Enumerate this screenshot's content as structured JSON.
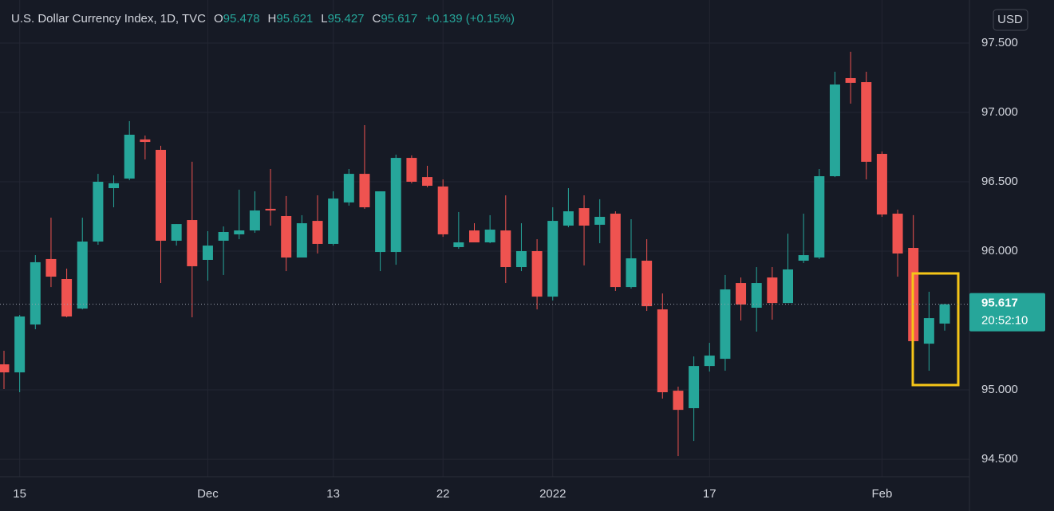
{
  "chart_data": {
    "type": "candlestick",
    "title": "U.S. Dollar Currency Index, 1D, TVC",
    "ohlc_labels": [
      "O",
      "H",
      "L",
      "C"
    ],
    "change_label": "+0.139 (+0.15%)",
    "currency": "USD",
    "countdown": "20:52:10",
    "up_color": "#26a69a",
    "down_color": "#ef5350",
    "grid": true,
    "categories": [
      null,
      "15",
      null,
      null,
      null,
      null,
      null,
      null,
      null,
      null,
      null,
      null,
      null,
      "Dec",
      null,
      null,
      null,
      null,
      null,
      null,
      null,
      "13",
      null,
      null,
      null,
      null,
      null,
      null,
      "22",
      null,
      null,
      null,
      null,
      null,
      null,
      "2022",
      null,
      null,
      null,
      null,
      null,
      null,
      null,
      null,
      null,
      "17",
      null,
      null,
      null,
      null,
      null,
      null,
      null,
      null,
      null,
      null,
      "Feb",
      null,
      null,
      null,
      null
    ],
    "open": [
      95.184,
      95.126,
      95.471,
      95.943,
      95.799,
      95.586,
      96.069,
      96.454,
      96.523,
      96.805,
      96.73,
      96.075,
      96.224,
      95.937,
      96.075,
      96.121,
      96.149,
      96.305,
      96.253,
      95.954,
      96.218,
      96.052,
      96.351,
      96.557,
      95.994,
      95.994,
      96.672,
      96.534,
      96.466,
      96.029,
      96.149,
      96.063,
      96.149,
      95.885,
      96.0,
      95.672,
      96.184,
      96.31,
      96.19,
      96.27,
      95.741,
      95.931,
      95.58,
      94.994,
      94.868,
      95.172,
      95.224,
      95.77,
      95.592,
      95.81,
      95.626,
      95.931,
      95.954,
      96.54,
      97.247,
      97.218,
      96.701,
      96.27,
      96.023,
      95.333,
      95.478
    ],
    "high": [
      95.282,
      95.54,
      95.971,
      96.241,
      95.874,
      96.241,
      96.557,
      96.546,
      96.937,
      96.833,
      96.759,
      96.195,
      96.644,
      96.144,
      96.178,
      96.443,
      96.431,
      96.592,
      96.397,
      96.259,
      96.402,
      96.431,
      96.592,
      96.908,
      96.431,
      96.695,
      96.69,
      96.615,
      96.517,
      96.282,
      96.201,
      96.259,
      96.402,
      96.201,
      96.086,
      96.316,
      96.454,
      96.402,
      96.374,
      96.287,
      96.23,
      96.086,
      95.695,
      95.023,
      95.241,
      95.339,
      95.828,
      95.81,
      95.885,
      95.885,
      96.126,
      96.27,
      96.592,
      97.293,
      97.437,
      97.293,
      96.718,
      96.299,
      96.259,
      95.707,
      95.621
    ],
    "low": [
      95.006,
      94.983,
      95.437,
      95.741,
      95.523,
      95.58,
      96.046,
      96.316,
      96.511,
      96.661,
      95.77,
      96.04,
      95.523,
      95.787,
      95.828,
      96.086,
      96.132,
      96.184,
      95.856,
      95.954,
      95.983,
      96.04,
      96.328,
      96.305,
      95.856,
      95.902,
      96.489,
      96.46,
      96.103,
      96.017,
      96.063,
      96.057,
      95.77,
      95.856,
      95.58,
      95.644,
      96.172,
      95.897,
      96.057,
      95.713,
      95.73,
      95.569,
      94.937,
      94.523,
      94.632,
      95.132,
      95.138,
      95.5,
      95.42,
      95.506,
      95.626,
      95.914,
      95.943,
      96.534,
      97.063,
      96.517,
      96.247,
      95.816,
      95.351,
      95.138,
      95.427
    ],
    "close": [
      95.126,
      95.529,
      95.92,
      95.816,
      95.529,
      96.069,
      96.5,
      96.489,
      96.839,
      96.787,
      96.075,
      96.195,
      95.891,
      96.04,
      96.138,
      96.149,
      96.293,
      96.293,
      95.954,
      96.201,
      96.052,
      96.379,
      96.557,
      96.316,
      96.431,
      96.672,
      96.5,
      96.471,
      96.121,
      96.063,
      96.063,
      96.155,
      95.885,
      96.0,
      95.672,
      96.218,
      96.287,
      96.184,
      96.247,
      95.741,
      95.948,
      95.603,
      94.983,
      94.856,
      95.172,
      95.247,
      95.724,
      95.615,
      95.77,
      95.626,
      95.868,
      95.971,
      96.54,
      97.201,
      97.213,
      96.644,
      96.264,
      95.983,
      95.351,
      95.517,
      95.617
    ],
    "ylim": [
      94.374,
      97.81
    ],
    "yticks": [
      {
        "value": 94.5,
        "label": "94.500"
      },
      {
        "value": 95,
        "label": "95.000"
      },
      {
        "value": 96,
        "label": "96.000"
      },
      {
        "value": 96.5,
        "label": "96.500"
      },
      {
        "value": 97,
        "label": "97.000"
      },
      {
        "value": 97.5,
        "label": "97.500"
      }
    ]
  }
}
